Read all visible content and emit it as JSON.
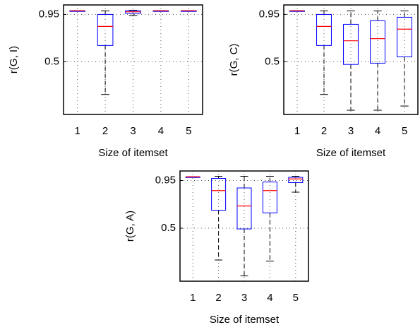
{
  "chart_data": [
    {
      "type": "box",
      "xlabel": "Size of itemset",
      "ylabel": "r(G, I)",
      "categories": [
        "1",
        "2",
        "3",
        "4",
        "5"
      ],
      "whisker_low": [
        0.985,
        0.19,
        0.94,
        0.985,
        0.985
      ],
      "q1": [
        0.985,
        0.655,
        0.96,
        0.985,
        0.985
      ],
      "median": [
        0.985,
        0.836,
        0.975,
        0.985,
        0.985
      ],
      "q3": [
        0.985,
        0.95,
        0.985,
        0.985,
        0.985
      ],
      "whisker_high": [
        0.985,
        0.984,
        0.99,
        0.985,
        0.985
      ],
      "box_color": "#0000ff",
      "median_color": "#ff0000",
      "whisker_color": "#000000",
      "ylim": [
        0,
        1.04
      ],
      "yticks": [
        0.5,
        0.95
      ],
      "grid": true
    },
    {
      "type": "box",
      "xlabel": "Size of itemset",
      "ylabel": "r(G, C)",
      "categories": [
        "1",
        "2",
        "3",
        "4",
        "5"
      ],
      "whisker_low": [
        0.985,
        0.19,
        0.04,
        0.04,
        0.08
      ],
      "q1": [
        0.985,
        0.655,
        0.475,
        0.487,
        0.547
      ],
      "median": [
        0.985,
        0.836,
        0.7,
        0.72,
        0.81
      ],
      "q3": [
        0.985,
        0.95,
        0.856,
        0.89,
        0.923
      ],
      "whisker_high": [
        0.985,
        0.984,
        0.984,
        0.984,
        0.984
      ],
      "box_color": "#0000ff",
      "median_color": "#ff0000",
      "whisker_color": "#000000",
      "ylim": [
        0,
        1.04
      ],
      "yticks": [
        0.5,
        0.95
      ],
      "grid": true
    },
    {
      "type": "box",
      "xlabel": "Size of itemset",
      "ylabel": "r(G, A)",
      "categories": [
        "1",
        "2",
        "3",
        "4",
        "5"
      ],
      "whisker_low": [
        0.985,
        0.2,
        0.05,
        0.19,
        0.84
      ],
      "q1": [
        0.985,
        0.67,
        0.493,
        0.645,
        0.93
      ],
      "median": [
        0.985,
        0.855,
        0.71,
        0.855,
        0.965
      ],
      "q3": [
        0.985,
        0.97,
        0.88,
        0.936,
        0.98
      ],
      "whisker_high": [
        0.985,
        0.99,
        0.99,
        0.99,
        0.99
      ],
      "box_color": "#0000ff",
      "median_color": "#ff0000",
      "whisker_color": "#000000",
      "ylim": [
        0,
        1.04
      ],
      "yticks": [
        0.5,
        0.95
      ],
      "grid": true
    }
  ]
}
